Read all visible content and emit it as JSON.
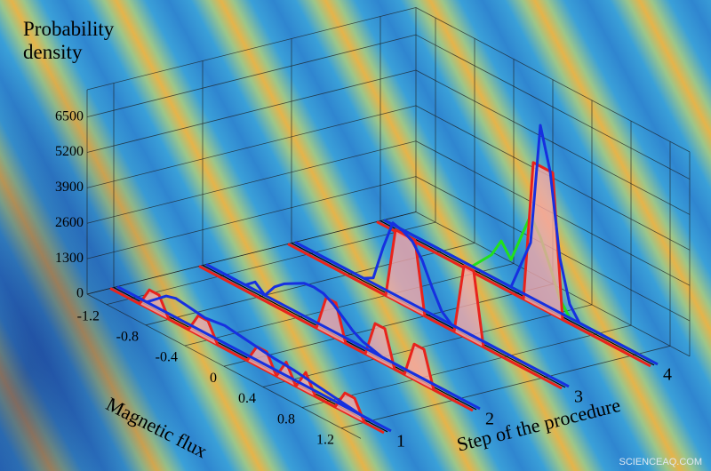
{
  "chart_data": {
    "type": "waterfall3d",
    "z_label": "Probability density",
    "x_label": "Magnetic flux",
    "y_label": "Step of the procedure",
    "watermark": "SCIENCEAQ.COM",
    "xlim": [
      -1.4,
      1.4
    ],
    "ylim": [
      0.7,
      4.4
    ],
    "zlim": [
      0,
      7500
    ],
    "xticks": [
      -1.2,
      -0.8,
      -0.4,
      0,
      0.4,
      0.8,
      1.2
    ],
    "yticks": [
      1,
      2,
      3,
      4
    ],
    "zticks": [
      0,
      1300,
      2600,
      3900,
      5200,
      6500
    ],
    "grid": true,
    "x": [
      -1.2,
      -1.1,
      -1.0,
      -0.9,
      -0.8,
      -0.7,
      -0.6,
      -0.5,
      -0.4,
      -0.3,
      -0.2,
      -0.1,
      0,
      0.1,
      0.2,
      0.3,
      0.4,
      0.5,
      0.6,
      0.7,
      0.8,
      0.9,
      1.0,
      1.1,
      1.2
    ],
    "series": [
      {
        "step": 1,
        "color": "#e8231c",
        "fill": true,
        "values": [
          0,
          0,
          700,
          700,
          0,
          0,
          0,
          700,
          700,
          0,
          0,
          0,
          0,
          700,
          700,
          0,
          700,
          0,
          700,
          0,
          0,
          0,
          700,
          700,
          0
        ]
      },
      {
        "step": 1,
        "color": "#1630e0",
        "fill": false,
        "values": [
          0,
          0,
          300,
          600,
          700,
          650,
          600,
          550,
          600,
          650,
          600,
          550,
          500,
          450,
          400,
          380,
          350,
          300,
          250,
          200,
          150,
          100,
          50,
          0,
          0
        ]
      },
      {
        "step": 2,
        "color": "#e8231c",
        "fill": true,
        "values": [
          0,
          0,
          0,
          0,
          0,
          0,
          0,
          0,
          0,
          0,
          0,
          1300,
          1300,
          0,
          0,
          0,
          1300,
          1300,
          0,
          0,
          1300,
          1300,
          0,
          0,
          0
        ]
      },
      {
        "step": 2,
        "color": "#1630e0",
        "fill": false,
        "values": [
          0,
          0,
          0,
          300,
          0,
          500,
          800,
          1000,
          1200,
          1250,
          1200,
          1000,
          700,
          400,
          200,
          100,
          0,
          0,
          0,
          0,
          0,
          0,
          0,
          0,
          0
        ]
      },
      {
        "step": 3,
        "color": "#e8231c",
        "fill": true,
        "values": [
          0,
          0,
          0,
          0,
          0,
          0,
          0,
          0,
          0,
          2600,
          2600,
          2600,
          0,
          0,
          0,
          0,
          2600,
          2600,
          0,
          0,
          0,
          0,
          0,
          0,
          0
        ]
      },
      {
        "step": 3,
        "color": "#1630e0",
        "fill": false,
        "values": [
          0,
          0,
          0,
          0,
          0,
          0,
          200,
          1500,
          2600,
          2500,
          2300,
          1800,
          1000,
          300,
          0,
          0,
          0,
          0,
          0,
          0,
          0,
          0,
          0,
          0,
          0
        ]
      },
      {
        "step": 4,
        "color": "#22e01c",
        "fill": false,
        "values": [
          0,
          0,
          0,
          0,
          0,
          0,
          0,
          0,
          400,
          800,
          1500,
          1000,
          2000,
          3000,
          2400,
          1500,
          500,
          0,
          0,
          0,
          0,
          0,
          0,
          0,
          0
        ]
      },
      {
        "step": 4,
        "color": "#e8231c",
        "fill": true,
        "values": [
          0,
          0,
          0,
          0,
          0,
          0,
          0,
          0,
          0,
          0,
          0,
          0,
          0,
          0,
          5200,
          5200,
          5200,
          0,
          0,
          0,
          0,
          0,
          0,
          0,
          0
        ]
      },
      {
        "step": 4,
        "color": "#1630e0",
        "fill": false,
        "values": [
          0,
          0,
          0,
          0,
          0,
          0,
          0,
          0,
          0,
          0,
          0,
          0,
          1000,
          2000,
          6500,
          5000,
          2000,
          500,
          0,
          0,
          0,
          0,
          0,
          0,
          0
        ]
      }
    ]
  }
}
